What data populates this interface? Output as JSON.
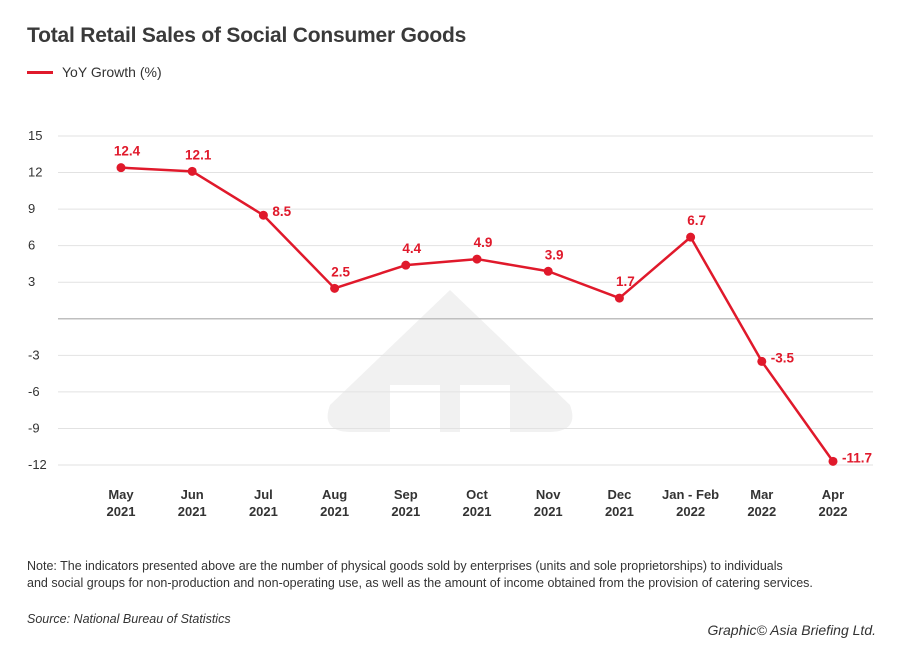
{
  "title": "Total Retail Sales of Social Consumer Goods",
  "legend": {
    "label": "YoY Growth (%)"
  },
  "note": "Note: The indicators presented above are the number of physical goods sold by enterprises (units and sole proprietorships) to individuals and social groups for non-production and non-operating use, as well as the amount of income obtained from the provision of catering services.",
  "note_line1": "Note: The indicators presented above are the number of physical goods sold by enterprises (units and sole proprietorships) to individuals",
  "note_line2": "and social groups for non-production and non-operating use, as well as the amount of income obtained from the provision of catering services.",
  "source": "Source: National Bureau of Statistics",
  "credit": "Graphic© Asia Briefing Ltd.",
  "colors": {
    "series": "#e0192b",
    "grid": "#e2e2e2",
    "zero": "#bfbfbf",
    "watermark": "#f1f1f1"
  },
  "chart_data": {
    "type": "line",
    "title": "Total Retail Sales of Social Consumer Goods",
    "xlabel": "",
    "ylabel": "",
    "categories": [
      [
        "May",
        "2021"
      ],
      [
        "Jun",
        "2021"
      ],
      [
        "Jul",
        "2021"
      ],
      [
        "Aug",
        "2021"
      ],
      [
        "Sep",
        "2021"
      ],
      [
        "Oct",
        "2021"
      ],
      [
        "Nov",
        "2021"
      ],
      [
        "Dec",
        "2021"
      ],
      [
        "Jan - Feb",
        "2022"
      ],
      [
        "Mar",
        "2022"
      ],
      [
        "Apr",
        "2022"
      ]
    ],
    "series": [
      {
        "name": "YoY Growth (%)",
        "values": [
          12.4,
          12.1,
          8.5,
          2.5,
          4.4,
          4.9,
          3.9,
          1.7,
          6.7,
          -3.5,
          -11.7
        ]
      }
    ],
    "ylim": [
      -12,
      15
    ],
    "yticks": [
      15,
      12,
      9,
      6,
      3,
      -3,
      -6,
      -9,
      -12
    ],
    "grid": true,
    "legend_position": "top-left"
  }
}
